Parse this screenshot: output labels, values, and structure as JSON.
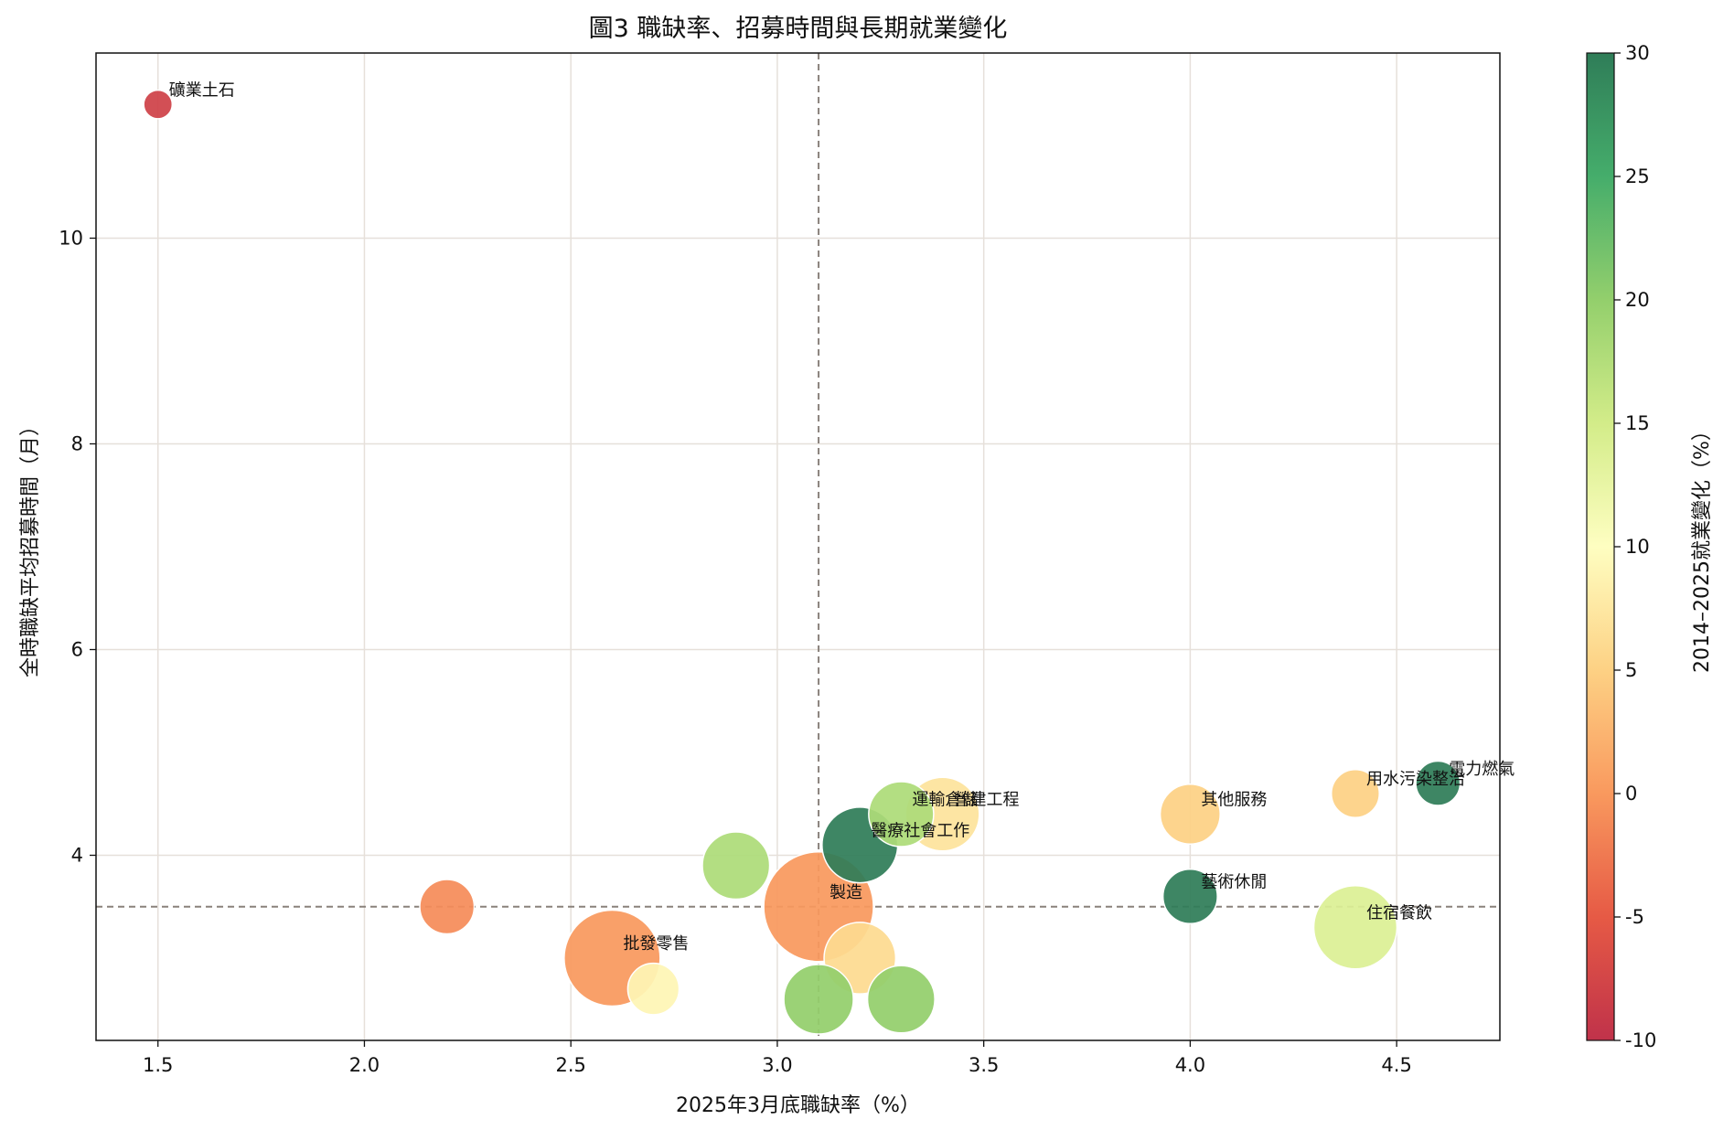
{
  "chart_data": {
    "type": "scatter",
    "title": "圖3 職缺率、招募時間與長期就業變化",
    "xlabel": "2025年3月底職缺率（%）",
    "ylabel": "全時職缺平均招募時間（月）",
    "xlim": [
      1.35,
      4.75
    ],
    "ylim": [
      2.2,
      11.8
    ],
    "xticks": [
      1.5,
      2.0,
      2.5,
      3.0,
      3.5,
      4.0,
      4.5
    ],
    "yticks": [
      4,
      6,
      8,
      10
    ],
    "grid": true,
    "reference_lines": {
      "x": 3.1,
      "y": 3.5
    },
    "colorbar": {
      "label": "2014–2025就業變化（%）",
      "min": -10,
      "max": 30,
      "ticks": [
        -10,
        -5,
        0,
        5,
        10,
        15,
        20,
        25,
        30
      ],
      "colors": [
        "#c0324a",
        "#e65a45",
        "#f9995e",
        "#fdd184",
        "#fefec1",
        "#d3ec89",
        "#93cf6c",
        "#45ad6b",
        "#2f7d58"
      ]
    },
    "points": [
      {
        "x": 1.5,
        "y": 11.3,
        "size": 1,
        "change": -8,
        "label": "礦業土石"
      },
      {
        "x": 2.2,
        "y": 3.5,
        "size": 7,
        "change": -1,
        "label": ""
      },
      {
        "x": 2.6,
        "y": 3.0,
        "size": 28,
        "change": 0,
        "label": "批發零售"
      },
      {
        "x": 2.7,
        "y": 2.7,
        "size": 6,
        "change": 9,
        "label": ""
      },
      {
        "x": 2.9,
        "y": 3.9,
        "size": 12,
        "change": 18,
        "label": ""
      },
      {
        "x": 3.1,
        "y": 2.6,
        "size": 13,
        "change": 20,
        "label": ""
      },
      {
        "x": 3.1,
        "y": 3.5,
        "size": 38,
        "change": 0,
        "label": "製造"
      },
      {
        "x": 3.2,
        "y": 3.0,
        "size": 14,
        "change": 6,
        "label": ""
      },
      {
        "x": 3.2,
        "y": 4.1,
        "size": 16,
        "change": 30,
        "label": "醫療社會工作"
      },
      {
        "x": 3.3,
        "y": 2.6,
        "size": 12,
        "change": 20,
        "label": ""
      },
      {
        "x": 3.3,
        "y": 4.4,
        "size": 11,
        "change": 18,
        "label": "運輸倉儲"
      },
      {
        "x": 3.4,
        "y": 4.4,
        "size": 15,
        "change": 7,
        "label": "營建工程"
      },
      {
        "x": 4.0,
        "y": 4.4,
        "size": 9,
        "change": 5,
        "label": "其他服務"
      },
      {
        "x": 4.0,
        "y": 3.6,
        "size": 7,
        "change": 30,
        "label": "藝術休閒"
      },
      {
        "x": 4.4,
        "y": 3.3,
        "size": 20,
        "change": 14,
        "label": "住宿餐飲"
      },
      {
        "x": 4.4,
        "y": 4.6,
        "size": 5,
        "change": 5,
        "label": "用水污染整治"
      },
      {
        "x": 4.6,
        "y": 4.7,
        "size": 4,
        "change": 30,
        "label": "電力燃氣"
      }
    ]
  }
}
